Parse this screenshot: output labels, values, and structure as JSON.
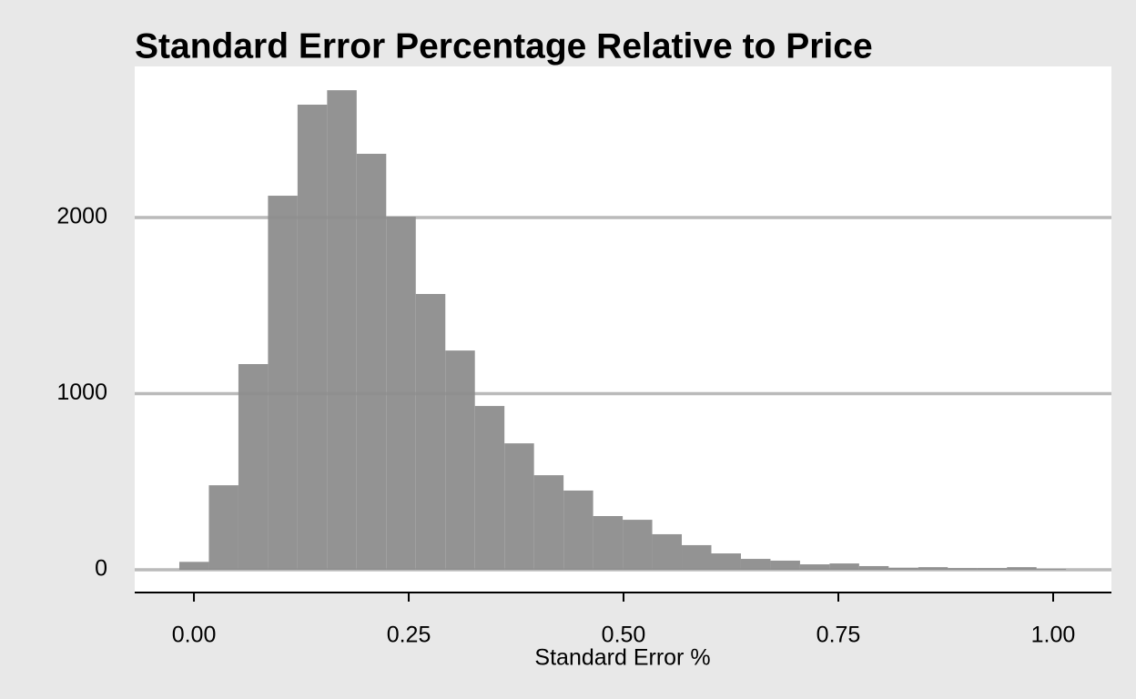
{
  "chart_data": {
    "type": "histogram",
    "title": "Standard Error Percentage Relative to Price",
    "xlabel": "Standard Error %",
    "bins": [
      -0.017,
      0.0174,
      0.0518,
      0.0862,
      0.1206,
      0.155,
      0.1894,
      0.2238,
      0.2582,
      0.2926,
      0.327,
      0.3614,
      0.3958,
      0.4302,
      0.4646,
      0.499,
      0.5334,
      0.5678,
      0.6022,
      0.6366,
      0.671,
      0.7054,
      0.7398,
      0.7742,
      0.8086,
      0.843,
      0.8774,
      0.9118,
      0.9462,
      0.9806,
      1.015
    ],
    "values": [
      45,
      480,
      1168,
      2124,
      2641,
      2723,
      2362,
      2005,
      1566,
      1245,
      930,
      718,
      537,
      450,
      305,
      284,
      202,
      140,
      93,
      62,
      52,
      31,
      36,
      21,
      12,
      15,
      10,
      10,
      15,
      5
    ],
    "color": "#939393",
    "xlim": [
      -0.0689,
      1.0678
    ],
    "ylim": [
      -129,
      2858
    ],
    "xticks": [
      {
        "value": 0,
        "label": "0.00"
      },
      {
        "value": 0.25,
        "label": "0.25"
      },
      {
        "value": 0.5,
        "label": "0.50"
      },
      {
        "value": 0.75,
        "label": "0.75"
      },
      {
        "value": 1,
        "label": "1.00"
      }
    ],
    "yticks": [
      0,
      1000,
      2000
    ],
    "grid": true
  }
}
